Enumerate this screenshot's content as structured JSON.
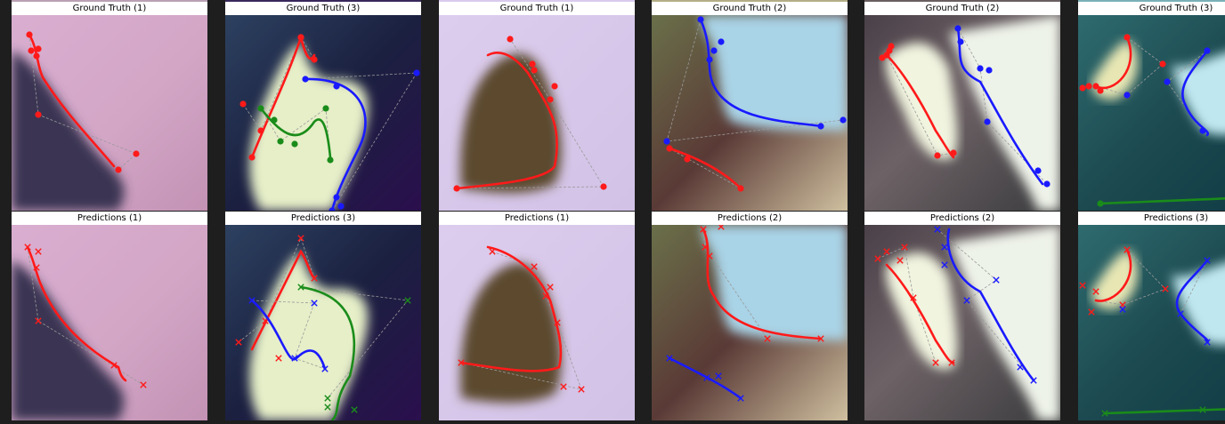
{
  "figure": {
    "rows": [
      {
        "panels": [
          {
            "title": "Ground Truth (1)"
          },
          {
            "title": "Ground Truth (3)"
          },
          {
            "title": "Ground Truth (1)"
          },
          {
            "title": "Ground Truth (2)"
          },
          {
            "title": "Ground Truth (2)"
          },
          {
            "title": "Ground Truth (3)"
          }
        ]
      },
      {
        "panels": [
          {
            "title": "Predictions (1)"
          },
          {
            "title": "Predictions (3)"
          },
          {
            "title": "Predictions (1)"
          },
          {
            "title": "Predictions (2)"
          },
          {
            "title": "Predictions (2)"
          },
          {
            "title": "Predictions (3)"
          }
        ]
      }
    ]
  },
  "colors": {
    "curve_red": "#ff1a1a",
    "curve_blue": "#1a1aff",
    "curve_green": "#1a8c1a",
    "control_polygon": "#9a9a9a",
    "panel_backgrounds": [
      "#d4a7c4",
      "#2c1f4f",
      "#dccdee",
      "#a7d2e4",
      "#f2f6e8",
      "#255a5c"
    ]
  },
  "markers": {
    "ground_truth": "circle",
    "predictions": "x"
  }
}
